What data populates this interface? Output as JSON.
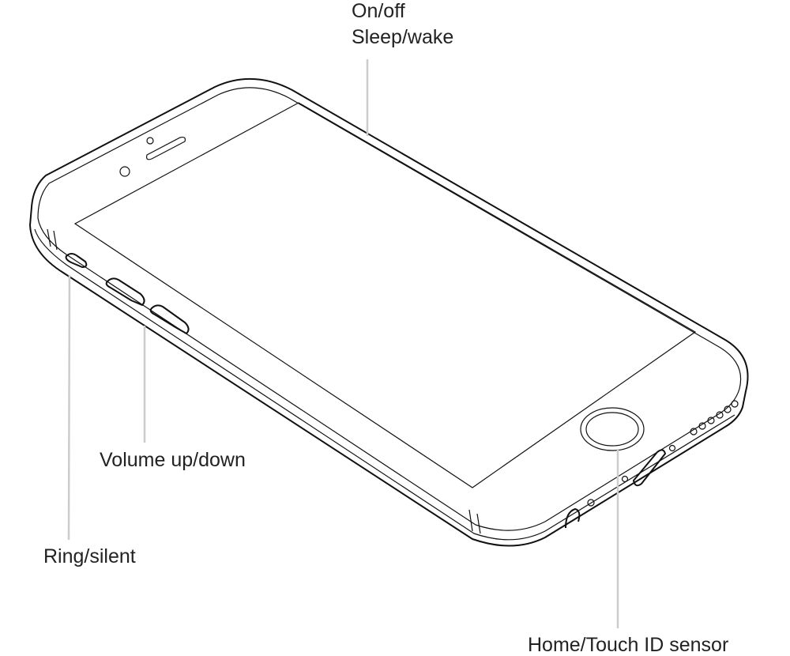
{
  "callouts": [
    {
      "lines": [
        "On/off",
        "Sleep/wake"
      ]
    },
    {
      "lines": [
        "Volume up/down"
      ]
    },
    {
      "lines": [
        "Ring/silent"
      ]
    },
    {
      "lines": [
        "Home/Touch ID sensor"
      ]
    }
  ]
}
